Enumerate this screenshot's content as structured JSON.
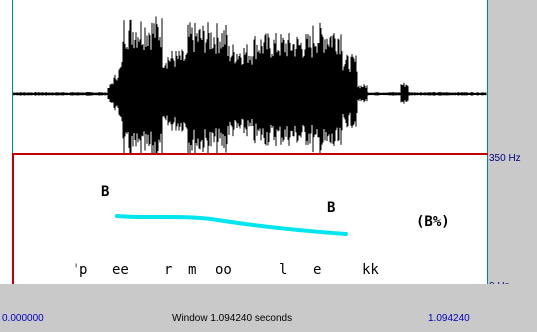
{
  "frequency_axis": {
    "top_label": "350 Hz",
    "bottom_label": "0 Hz"
  },
  "time_bar": {
    "start": "0.000000",
    "window_label": "Window 1.094240 seconds",
    "end": "1.094240"
  },
  "pitch_annotations": {
    "boundary_left": "B",
    "boundary_right": "B",
    "tone": "(B%)"
  },
  "phonetic_labels": [
    "p",
    "ee",
    "r",
    "m",
    "oo",
    "l",
    "e",
    "kk"
  ],
  "colors": {
    "pitch_contour": "#00e5ee",
    "waveform": "#000000",
    "divider": "#c00000",
    "accent_text": "#0000c0"
  }
}
